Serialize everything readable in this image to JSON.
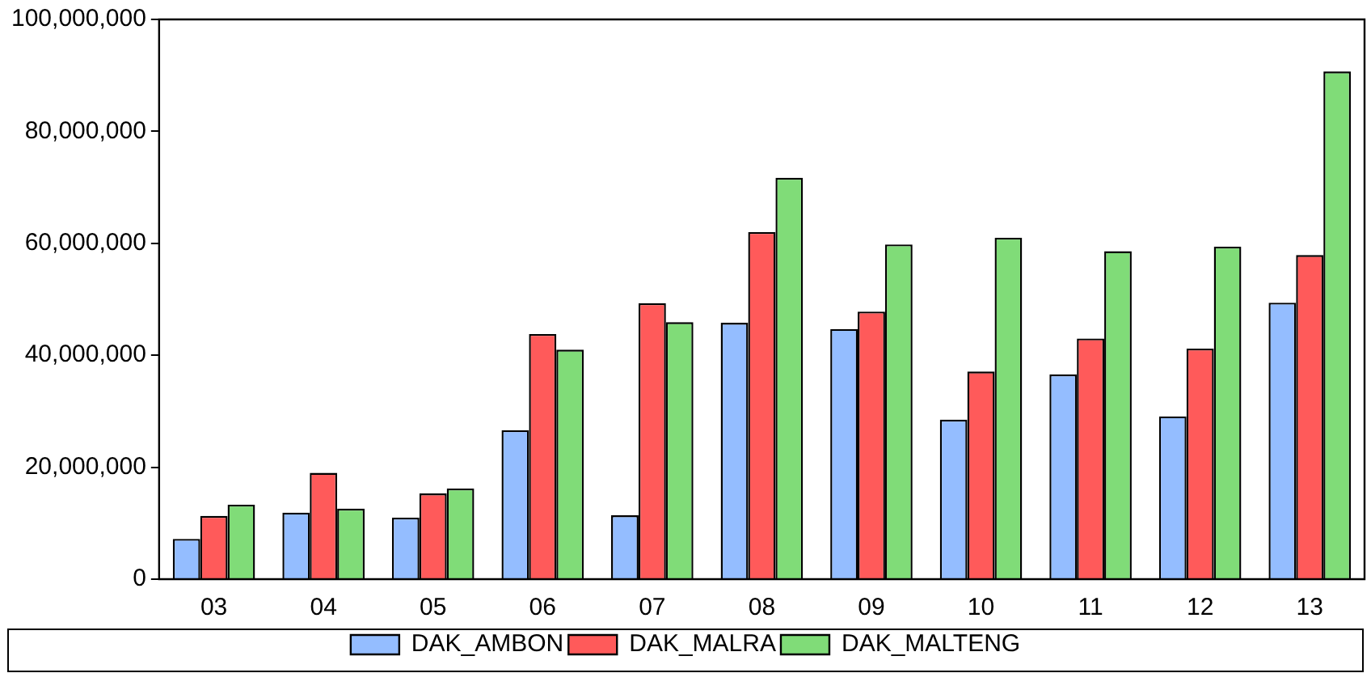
{
  "chart_data": {
    "type": "bar",
    "categories": [
      "03",
      "04",
      "05",
      "06",
      "07",
      "08",
      "09",
      "10",
      "11",
      "12",
      "13"
    ],
    "series": [
      {
        "name": "DAK_AMBON",
        "color": "#94bdff",
        "values": [
          7200000,
          11900000,
          11000000,
          26600000,
          11400000,
          45800000,
          44700000,
          28500000,
          36600000,
          29100000,
          49400000
        ]
      },
      {
        "name": "DAK_MALRA",
        "color": "#ff5a5a",
        "values": [
          11300000,
          19000000,
          15300000,
          43800000,
          49300000,
          62000000,
          47800000,
          37100000,
          43000000,
          41200000,
          57900000
        ]
      },
      {
        "name": "DAK_MALTENG",
        "color": "#80dc78",
        "values": [
          13300000,
          12600000,
          16200000,
          41000000,
          45900000,
          71700000,
          59800000,
          61000000,
          58600000,
          59400000,
          90700000
        ]
      }
    ],
    "ylim": [
      0,
      100000000
    ],
    "yticks": [
      {
        "value": 0,
        "label": "0"
      },
      {
        "value": 20000000,
        "label": "20,000,000"
      },
      {
        "value": 40000000,
        "label": "40,000,000"
      },
      {
        "value": 60000000,
        "label": "60,000,000"
      },
      {
        "value": 80000000,
        "label": "80,000,000"
      },
      {
        "value": 100000000,
        "label": "100,000,000"
      }
    ],
    "grid": false,
    "legend": "bottom"
  }
}
